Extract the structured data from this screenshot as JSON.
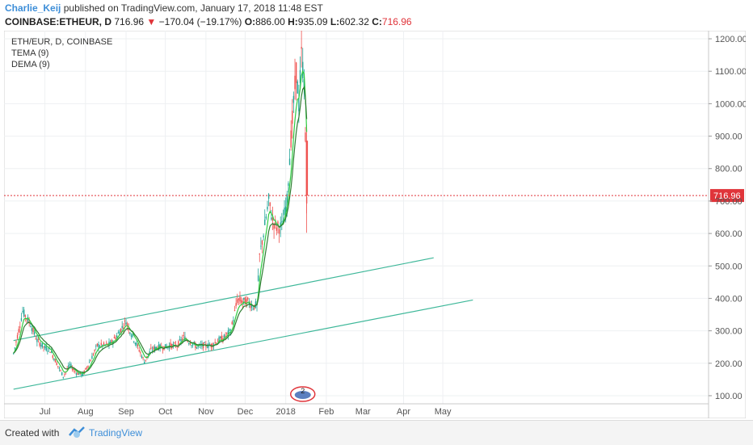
{
  "header": {
    "author": "Charlie_Keij",
    "published": "published on TradingView.com, January 17, 2018 11:48 EST"
  },
  "ohlc": {
    "symbol": "COINBASE:ETHEUR, D",
    "last": "716.96",
    "change": "−170.04 (−19.17%)",
    "o_label": "O:",
    "o": "886.00",
    "h_label": "H:",
    "h": "935.09",
    "l_label": "L:",
    "l": "602.32",
    "c_label": "C:",
    "c": "716.96"
  },
  "legend": {
    "title": "ETH/EUR, D, COINBASE",
    "ind1": "TEMA (9)",
    "ind2": "DEMA (9)"
  },
  "price_label": "716.96",
  "event_badge": "2",
  "footer": {
    "created": "Created with",
    "brand": "TradingView"
  },
  "colors": {
    "up": "#26a69a",
    "down": "#ef5350",
    "tema": "#2e7d32",
    "dema": "#2ecc40",
    "channel": "#3fb89a",
    "price_line": "#e0343a"
  },
  "chart_data": {
    "type": "candlestick",
    "x_ticks": [
      "Jul",
      "Aug",
      "Sep",
      "Oct",
      "Nov",
      "Dec",
      "2018",
      "Feb",
      "Mar",
      "Apr",
      "May"
    ],
    "y_ticks": [
      "100.00",
      "200.00",
      "300.00",
      "400.00",
      "500.00",
      "600.00",
      "700.00",
      "800.00",
      "900.00",
      "1000.00",
      "1100.00",
      "1200.00"
    ],
    "ylim": [
      75,
      1225
    ],
    "last_price": 716.96,
    "price_series": [
      [
        "2017-06-07",
        230
      ],
      [
        "2017-06-12",
        320
      ],
      [
        "2017-06-14",
        360
      ],
      [
        "2017-06-20",
        320
      ],
      [
        "2017-06-25",
        270
      ],
      [
        "2017-06-30",
        250
      ],
      [
        "2017-07-05",
        240
      ],
      [
        "2017-07-10",
        200
      ],
      [
        "2017-07-15",
        160
      ],
      [
        "2017-07-20",
        195
      ],
      [
        "2017-07-25",
        170
      ],
      [
        "2017-07-30",
        165
      ],
      [
        "2017-08-05",
        210
      ],
      [
        "2017-08-10",
        255
      ],
      [
        "2017-08-15",
        255
      ],
      [
        "2017-08-20",
        260
      ],
      [
        "2017-08-25",
        285
      ],
      [
        "2017-09-01",
        330
      ],
      [
        "2017-09-05",
        290
      ],
      [
        "2017-09-10",
        250
      ],
      [
        "2017-09-15",
        205
      ],
      [
        "2017-09-20",
        240
      ],
      [
        "2017-09-25",
        250
      ],
      [
        "2017-10-01",
        250
      ],
      [
        "2017-10-05",
        255
      ],
      [
        "2017-10-10",
        255
      ],
      [
        "2017-10-15",
        280
      ],
      [
        "2017-10-20",
        265
      ],
      [
        "2017-10-25",
        250
      ],
      [
        "2017-10-30",
        255
      ],
      [
        "2017-11-05",
        255
      ],
      [
        "2017-11-10",
        270
      ],
      [
        "2017-11-15",
        280
      ],
      [
        "2017-11-20",
        300
      ],
      [
        "2017-11-25",
        395
      ],
      [
        "2017-11-30",
        390
      ],
      [
        "2017-12-03",
        390
      ],
      [
        "2017-12-07",
        375
      ],
      [
        "2017-12-10",
        380
      ],
      [
        "2017-12-12",
        530
      ],
      [
        "2017-12-15",
        600
      ],
      [
        "2017-12-19",
        700
      ],
      [
        "2017-12-22",
        640
      ],
      [
        "2017-12-25",
        620
      ],
      [
        "2017-12-29",
        620
      ],
      [
        "2018-01-02",
        700
      ],
      [
        "2018-01-04",
        840
      ],
      [
        "2018-01-07",
        1000
      ],
      [
        "2018-01-09",
        1100
      ],
      [
        "2018-01-11",
        1000
      ],
      [
        "2018-01-13",
        1150
      ],
      [
        "2018-01-15",
        1070
      ],
      [
        "2018-01-16",
        887
      ],
      [
        "2018-01-17",
        717
      ]
    ],
    "channel_lines": [
      {
        "x1": "2017-06-07",
        "y1": 270,
        "x2": "2018-04-24",
        "y2": 525
      },
      {
        "x1": "2017-06-07",
        "y1": 120,
        "x2": "2018-05-24",
        "y2": 395
      }
    ]
  }
}
